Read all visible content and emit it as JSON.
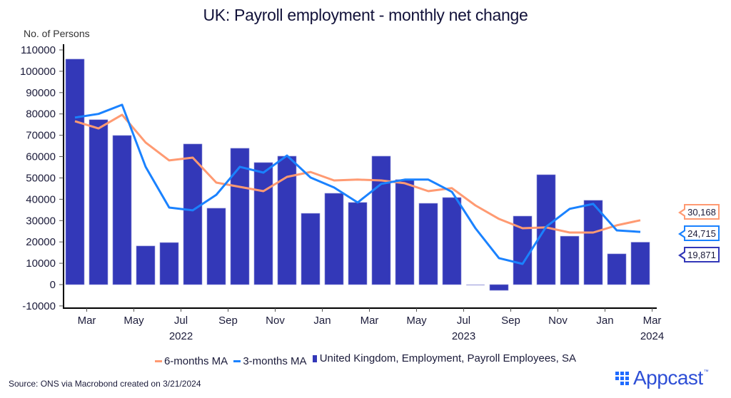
{
  "chart_data": {
    "type": "bar",
    "title": "UK: Payroll employment - monthly net change",
    "ylabel": "No. of Persons",
    "xlabel": "",
    "ylim": [
      -10000,
      110000
    ],
    "yticks": [
      -10000,
      0,
      10000,
      20000,
      30000,
      40000,
      50000,
      60000,
      70000,
      80000,
      90000,
      100000,
      110000
    ],
    "ytick_labels": [
      "-10000",
      "0",
      "10000",
      "20000",
      "30000",
      "40000",
      "50000",
      "60000",
      "70000",
      "80000",
      "90000",
      "100000",
      "110000"
    ],
    "categories": [
      "2022-02",
      "2022-03",
      "2022-04",
      "2022-05",
      "2022-06",
      "2022-07",
      "2022-08",
      "2022-09",
      "2022-10",
      "2022-11",
      "2022-12",
      "2023-01",
      "2023-02",
      "2023-03",
      "2023-04",
      "2023-05",
      "2023-06",
      "2023-07",
      "2023-08",
      "2023-09",
      "2023-10",
      "2023-11",
      "2023-12",
      "2024-01",
      "2024-02"
    ],
    "xticks": [
      {
        "label": "Mar",
        "year": "2022"
      },
      {
        "label": "May",
        "year": ""
      },
      {
        "label": "Jul",
        "year": ""
      },
      {
        "label": "Sep",
        "year": ""
      },
      {
        "label": "Nov",
        "year": ""
      },
      {
        "label": "Jan",
        "year": ""
      },
      {
        "label": "Mar",
        "year": ""
      },
      {
        "label": "May",
        "year": ""
      },
      {
        "label": "Jul",
        "year": "2023"
      },
      {
        "label": "Sep",
        "year": ""
      },
      {
        "label": "Nov",
        "year": ""
      },
      {
        "label": "Jan",
        "year": ""
      },
      {
        "label": "Mar",
        "year": "2024"
      }
    ],
    "year_labels": [
      {
        "label": "2022",
        "month_index": 5
      },
      {
        "label": "2023",
        "month_index": 17
      },
      {
        "label": "2024",
        "month_index": 25
      }
    ],
    "grid": false,
    "legend_position": "bottom",
    "series": [
      {
        "name": "United Kingdom, Employment, Payroll Employees, SA",
        "kind": "bar",
        "color": "#3338b8",
        "values": [
          105700,
          77300,
          69900,
          18100,
          19700,
          65900,
          35800,
          63900,
          57200,
          60200,
          33400,
          42800,
          38500,
          60200,
          49200,
          38100,
          40800,
          0,
          -2700,
          32100,
          51500,
          22700,
          39500,
          14400,
          19871
        ],
        "last_value_label": "19,871"
      },
      {
        "name": "3-months MA",
        "kind": "line",
        "color": "#1a82ff",
        "values": [
          78300,
          80000,
          84300,
          55200,
          36100,
          34800,
          42100,
          55200,
          52500,
          60500,
          50200,
          45500,
          38500,
          47200,
          49200,
          49200,
          43500,
          26400,
          12400,
          9700,
          27100,
          35500,
          37800,
          25400,
          24715
        ],
        "last_value_label": "24,715"
      },
      {
        "name": "6-months MA",
        "kind": "line",
        "color": "#ff9a72",
        "values": [
          76600,
          73200,
          79600,
          66600,
          58200,
          59500,
          47800,
          45800,
          43800,
          50500,
          52800,
          48800,
          49200,
          48800,
          47500,
          43800,
          45200,
          37100,
          30800,
          26400,
          26800,
          24400,
          24400,
          27800,
          30168
        ],
        "last_value_label": "30,168"
      }
    ]
  },
  "legend": [
    {
      "label": "6-months MA",
      "color": "#ff9a72",
      "kind": "line"
    },
    {
      "label": "3-months MA",
      "color": "#1a82ff",
      "kind": "line"
    },
    {
      "label": "United Kingdom, Employment, Payroll Employees, SA",
      "color": "#3338b8",
      "kind": "box"
    }
  ],
  "footer": {
    "source": "Source: ONS via Macrobond created on 3/21/2024",
    "logo_text": "Appcast",
    "logo_tm": "™"
  }
}
